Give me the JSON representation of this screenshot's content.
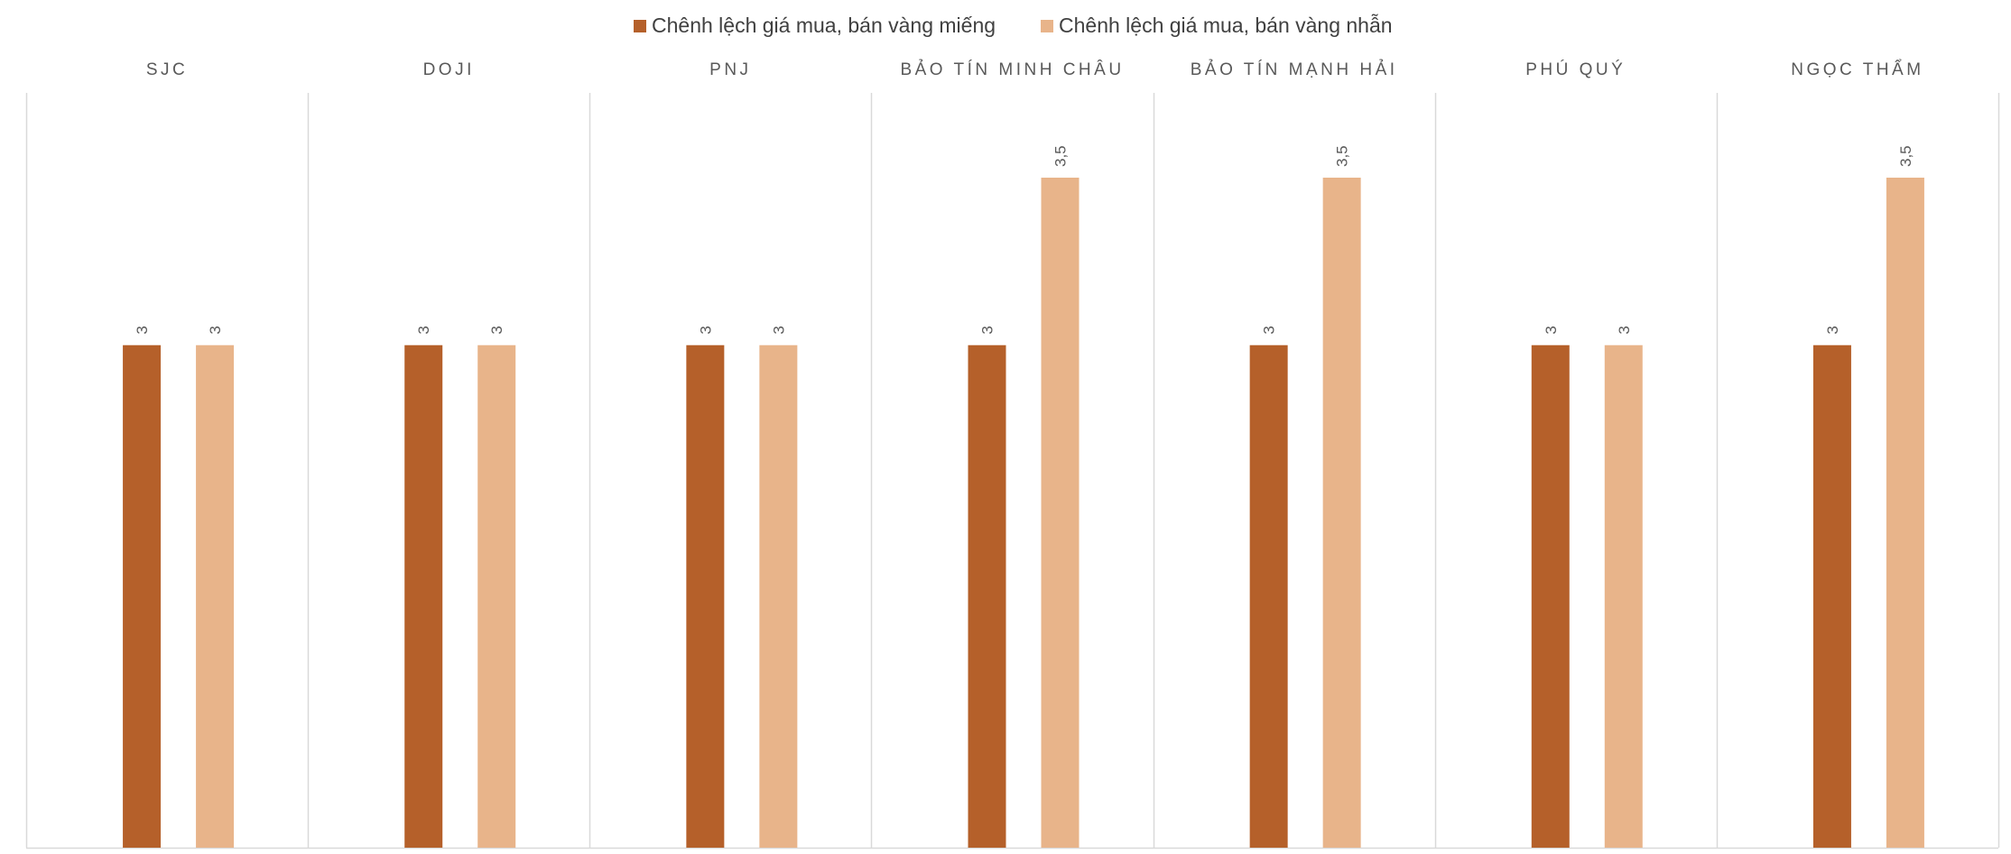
{
  "chart_data": {
    "type": "bar",
    "categories": [
      "SJC",
      "DOJI",
      "PNJ",
      "BẢO TÍN MINH CHÂU",
      "BẢO TÍN MẠNH HẢI",
      "PHÚ QUÝ",
      "NGỌC THẨM"
    ],
    "series": [
      {
        "name": "Chênh lệch giá mua, bán vàng miếng",
        "color": "#b5602a",
        "values": [
          3,
          3,
          3,
          3,
          3,
          3,
          3
        ],
        "labels": [
          "3",
          "3",
          "3",
          "3",
          "3",
          "3",
          "3"
        ]
      },
      {
        "name": "Chênh lệch giá mua, bán  vàng nhẫn",
        "color": "#e8b48a",
        "values": [
          3,
          3,
          3,
          3.5,
          3.5,
          3,
          3.5
        ],
        "labels": [
          "3",
          "3",
          "3",
          "3,5",
          "3,5",
          "3",
          "3,5"
        ]
      }
    ],
    "ylim": [
      1.5,
      3.6
    ],
    "grid": false,
    "legend_position": "top-center",
    "category_label_position": "top",
    "data_label_rotation": "vertical"
  }
}
